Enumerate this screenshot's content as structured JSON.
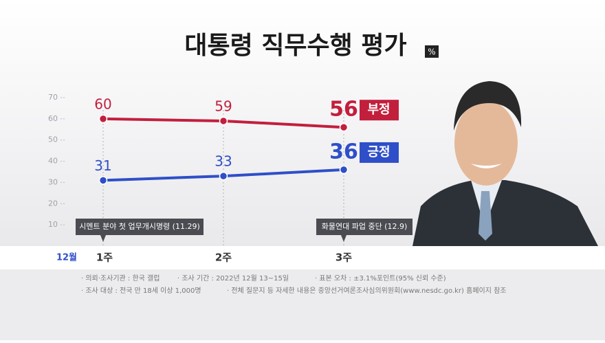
{
  "chart_data": {
    "type": "line",
    "title": "대통령 직무수행 평가",
    "unit": "%",
    "month_label": "12월",
    "categories": [
      "1주",
      "2주",
      "3주"
    ],
    "series": [
      {
        "name": "부정",
        "color": "#c21f3c",
        "values": [
          60,
          59,
          56
        ]
      },
      {
        "name": "긍정",
        "color": "#2f4fc8",
        "values": [
          31,
          33,
          36
        ]
      }
    ],
    "ylim": [
      0,
      70
    ],
    "yticks": [
      10,
      20,
      30,
      40,
      50,
      60,
      70
    ],
    "grid": true,
    "annotations": [
      "시멘트 분야 첫 업무개시명령 (11.29)",
      "화물연대 파업 중단 (12.9)"
    ],
    "footnotes": [
      "· 의뢰·조사기관 : 한국 갤럽",
      "· 조사 기간 : 2022년 12월 13~15일",
      "· 표본 오차 : ±3.1%포인트(95% 신뢰 수준)",
      "· 조사 대상 : 전국 만 18세 이상 1,000명",
      "· 전체 질문지 등 자세한 내용은 중앙선거여론조사심의위원회(www.nesdc.go.kr) 홈페이지 참조"
    ]
  }
}
